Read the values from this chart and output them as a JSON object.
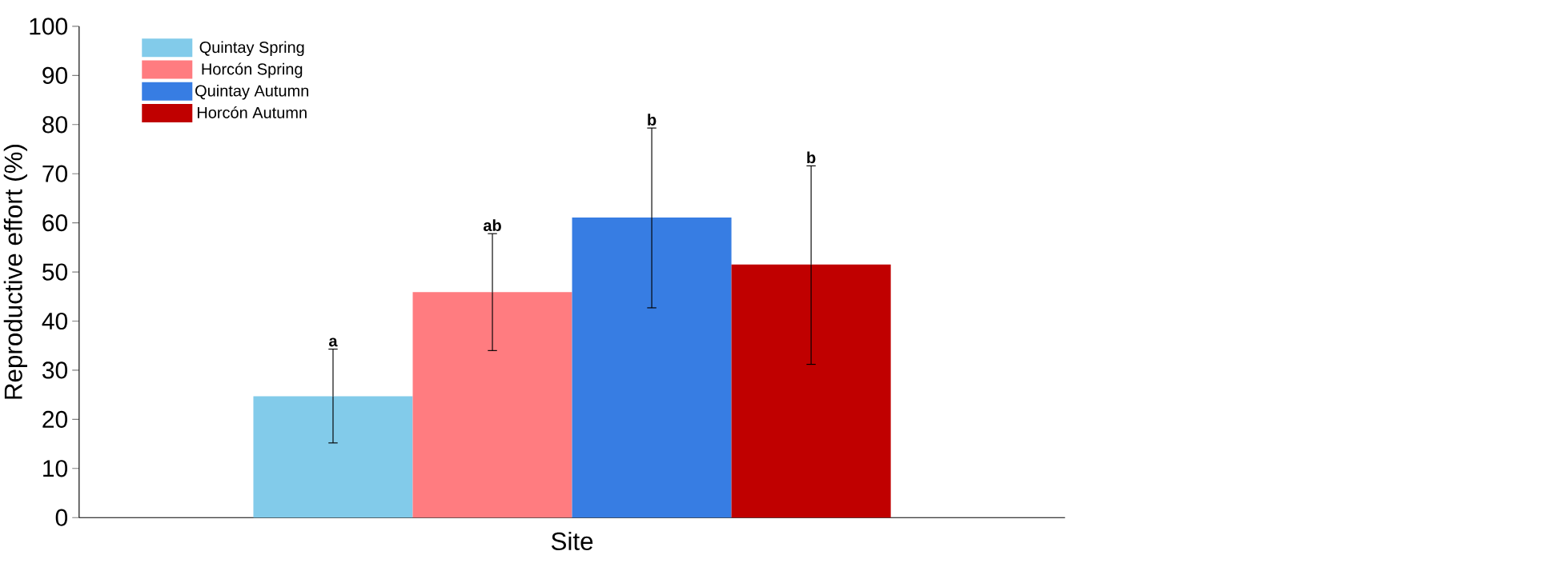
{
  "chart_data": {
    "type": "bar",
    "xlabel": "Site",
    "ylabel": "Reproductive effort (%)",
    "categories": [
      null
    ],
    "series": [
      {
        "name": "Quintay Spring",
        "color": "#82cbea",
        "values": [
          24.7
        ],
        "errors": [
          [
            15.2,
            34.3
          ]
        ]
      },
      {
        "name": "Horcón Spring",
        "color": "#ff7c80",
        "values": [
          45.9
        ],
        "errors": [
          [
            34.0,
            57.8
          ]
        ]
      },
      {
        "name": "Quintay Autumn",
        "color": "#377de3",
        "values": [
          61.1
        ],
        "errors": [
          [
            42.7,
            79.3
          ]
        ]
      },
      {
        "name": "Horcón Autumn",
        "color": "#c00000",
        "values": [
          51.5
        ],
        "errors": [
          [
            31.2,
            71.6
          ]
        ]
      }
    ],
    "annotations": [
      "a",
      "ab",
      "b",
      "b"
    ],
    "ylim": [
      0,
      100
    ],
    "yticks": [
      0,
      10,
      20,
      30,
      40,
      50,
      60,
      70,
      80,
      90,
      100
    ],
    "grid": false,
    "legend": "top left"
  }
}
